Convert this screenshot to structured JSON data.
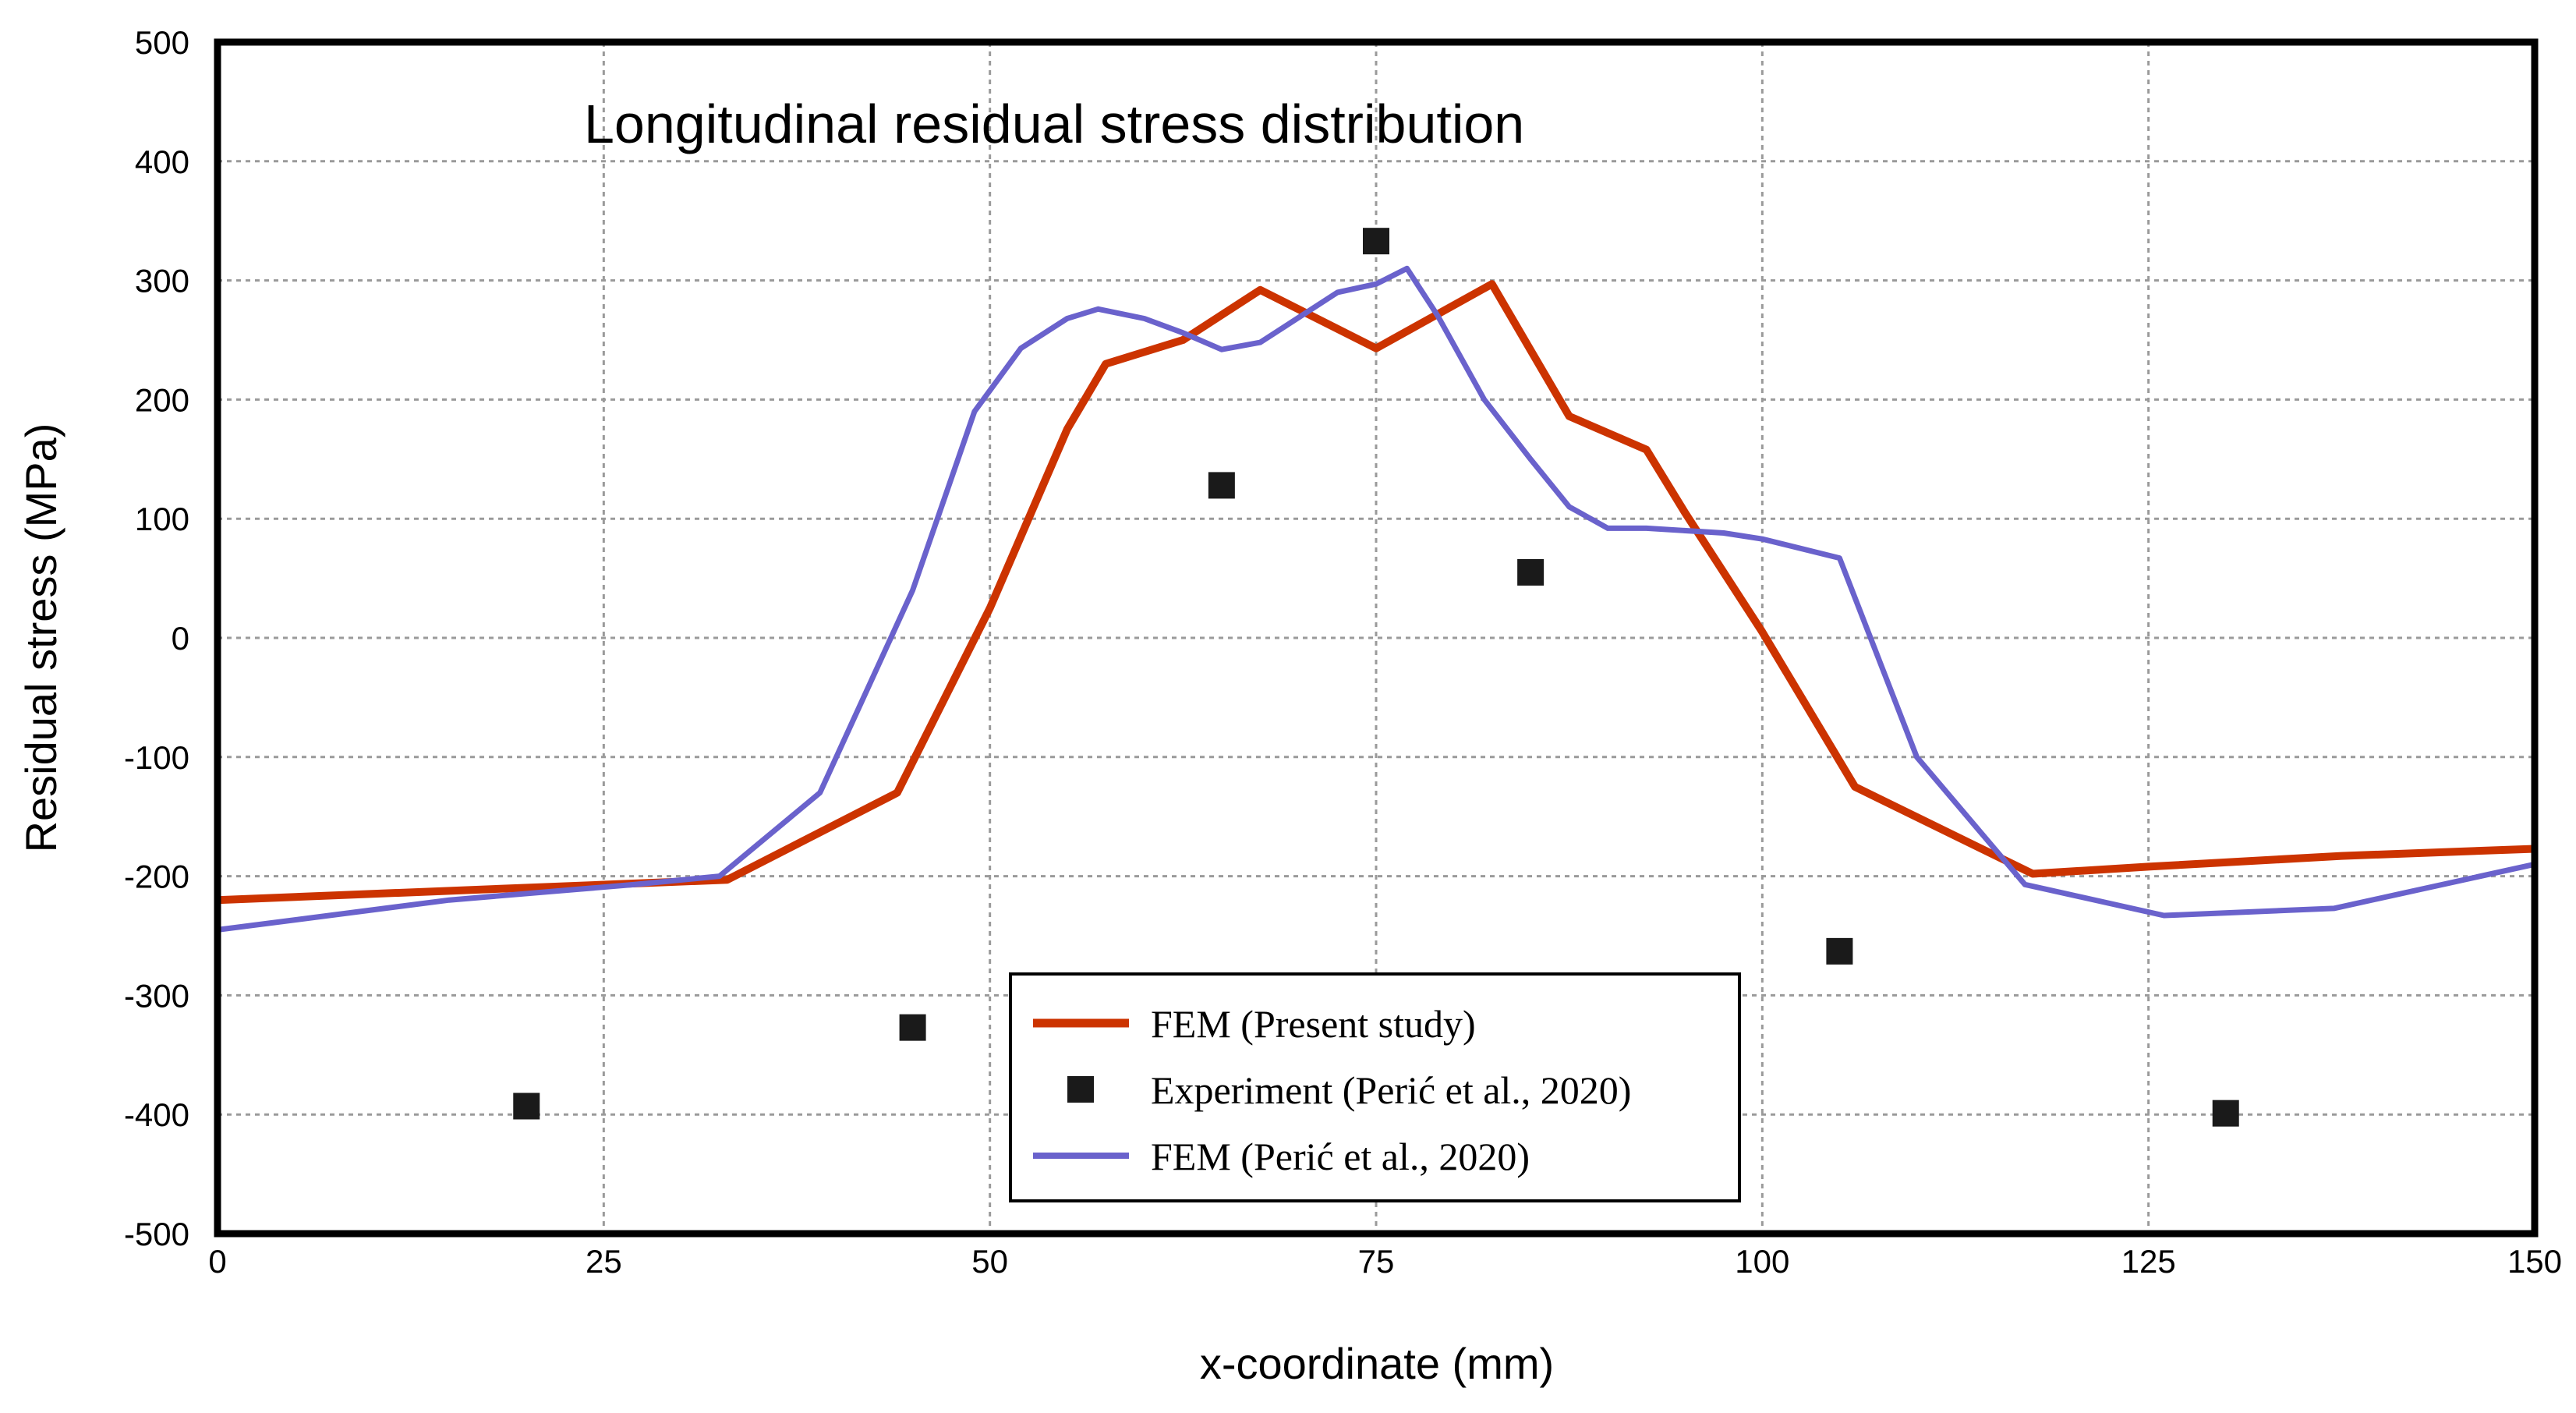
{
  "chart_data": {
    "type": "line",
    "title": "Longitudinal residual stress distribution",
    "xlabel": "x-coordinate (mm)",
    "ylabel": "Residual stress (MPa)",
    "xlim": [
      0,
      150
    ],
    "ylim": [
      -500,
      500
    ],
    "grid": true,
    "legend_position": "bottom-center",
    "x_ticks": [
      0,
      25,
      50,
      75,
      100,
      125,
      150
    ],
    "y_ticks": [
      -500,
      -400,
      -300,
      -200,
      -100,
      0,
      100,
      200,
      300,
      400,
      500
    ],
    "x_tick_labels": [
      "0",
      "25",
      "50",
      "75",
      "100",
      "125",
      "150"
    ],
    "y_tick_labels": [
      "-500",
      "-400",
      "-300",
      "-200",
      "-100",
      "0",
      "100",
      "200",
      "300",
      "400",
      "500"
    ],
    "series": [
      {
        "name": "FEM (Present study)",
        "kind": "line",
        "color": "#cc3300",
        "x": [
          0,
          33,
          44,
          50,
          55,
          57.5,
          62.5,
          67.5,
          75,
          82.5,
          87.5,
          92.5,
          95,
          100,
          106,
          117.5,
          125,
          137.5,
          150
        ],
        "y": [
          -220,
          -203,
          -130,
          25,
          175,
          230,
          250,
          292,
          243,
          297,
          186,
          158,
          105,
          5,
          -125,
          -198,
          -192,
          -183,
          -177
        ]
      },
      {
        "name": "Experiment (Perić et al., 2020)",
        "kind": "scatter",
        "color": "#1a1a1a",
        "x": [
          20,
          45,
          65,
          75,
          85,
          105,
          130
        ],
        "y": [
          -393,
          -327,
          128,
          333,
          55,
          -263,
          -399
        ]
      },
      {
        "name": "FEM (Perić et al., 2020)",
        "kind": "line",
        "color": "#6a62cc",
        "x": [
          0,
          15,
          27,
          32.5,
          39,
          45,
          49,
          52,
          55,
          57,
          60,
          62.5,
          65,
          67.5,
          72.5,
          75,
          77,
          79,
          82,
          85,
          87.5,
          90,
          92.5,
          97.5,
          100,
          105,
          110,
          117,
          126,
          137,
          150
        ],
        "y": [
          -245,
          -220,
          -207,
          -200,
          -130,
          40,
          190,
          243,
          268,
          276,
          268,
          256,
          242,
          248,
          290,
          297,
          310,
          270,
          200,
          150,
          110,
          92,
          92,
          88,
          83,
          67,
          -100,
          -207,
          -233,
          -227,
          -190
        ]
      }
    ]
  }
}
